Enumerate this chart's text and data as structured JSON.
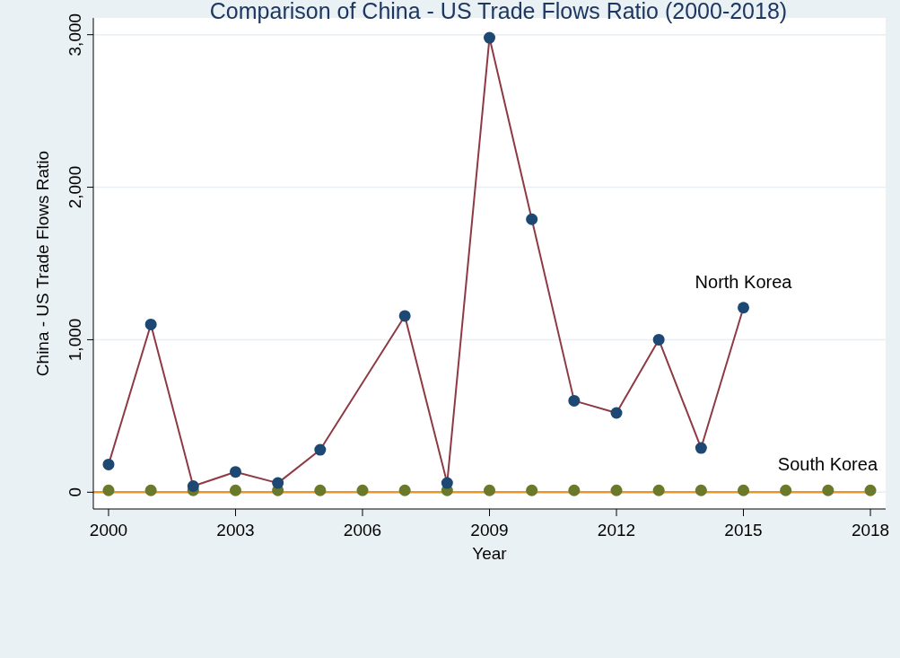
{
  "chart_data": {
    "type": "line",
    "title": "Comparison of China - US Trade Flows Ratio (2000-2018)",
    "xlabel": "Year",
    "ylabel": "China - US Trade Flows Ratio",
    "x": [
      2000,
      2001,
      2002,
      2003,
      2004,
      2005,
      2006,
      2007,
      2008,
      2009,
      2010,
      2011,
      2012,
      2013,
      2014,
      2015,
      2016,
      2017,
      2018
    ],
    "series": [
      {
        "name": "North Korea",
        "color": "#8e3a45",
        "values": [
          182,
          1100,
          40,
          133,
          60,
          278,
          null,
          1156,
          60,
          2980,
          1790,
          600,
          520,
          1000,
          290,
          1210,
          null,
          null,
          null
        ]
      },
      {
        "name": "South Korea",
        "type": "scatter",
        "color": "#6b7a2a",
        "values": [
          12,
          12,
          12,
          12,
          12,
          12,
          12,
          12,
          12,
          12,
          12,
          12,
          12,
          12,
          12,
          12,
          12,
          12,
          12
        ]
      }
    ],
    "ref_lines": [
      {
        "axis": "y",
        "value": 0,
        "color": "#e8962a"
      }
    ],
    "xlim": [
      1999.64,
      2018.36
    ],
    "xticks": [
      2000,
      2003,
      2006,
      2009,
      2012,
      2015,
      2018
    ],
    "ylim": [
      -110,
      3110
    ],
    "yticks": [
      {
        "value": 0,
        "label": "0"
      },
      {
        "value": 1000,
        "label": "1,000"
      },
      {
        "value": 2000,
        "label": "2,000"
      },
      {
        "value": 3000,
        "label": "3,000"
      }
    ],
    "grid": "y",
    "legend": false,
    "marker": "circle"
  }
}
